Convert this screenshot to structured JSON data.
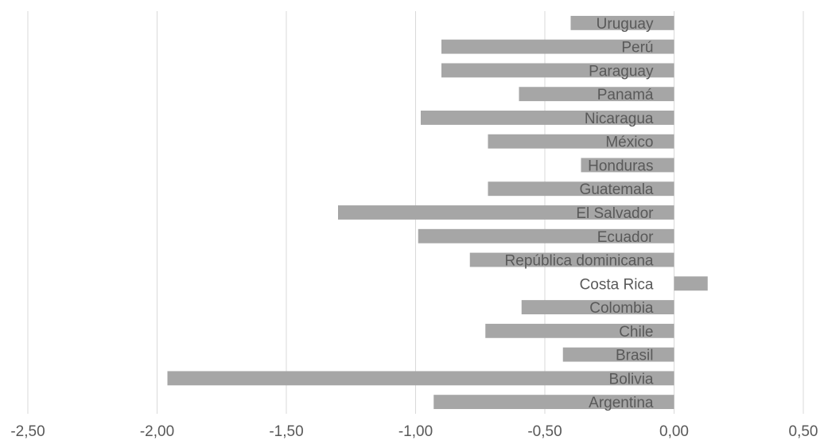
{
  "chart_data": {
    "type": "bar",
    "orientation": "horizontal",
    "title": "",
    "xlabel": "",
    "ylabel": "",
    "xlim": [
      -2.5,
      0.5
    ],
    "x_ticks": [
      -2.5,
      -2.0,
      -1.5,
      -1.0,
      -0.5,
      0.0,
      0.5
    ],
    "x_tick_labels": [
      "-2,50",
      "-2,00",
      "-1,50",
      "-1,00",
      "-0,50",
      "0,00",
      "0,50"
    ],
    "grid": "vertical",
    "legend": "none",
    "bar_color": "#a6a6a6",
    "label_color": "#595959",
    "categories": [
      "Uruguay",
      "Perú",
      "Paraguay",
      "Panamá",
      "Nicaragua",
      "México",
      "Honduras",
      "Guatemala",
      "El Salvador",
      "Ecuador",
      "República dominicana",
      "Costa Rica",
      "Colombia",
      "Chile",
      "Brasil",
      "Bolivia",
      "Argentina"
    ],
    "values": [
      -0.4,
      -0.9,
      -0.9,
      -0.6,
      -0.98,
      -0.72,
      -0.36,
      -0.72,
      -1.3,
      -0.99,
      -0.79,
      0.13,
      -0.59,
      -0.73,
      -0.43,
      -1.96,
      -0.93
    ]
  }
}
